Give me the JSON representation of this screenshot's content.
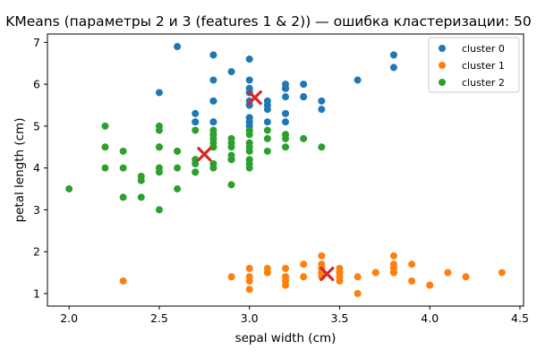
{
  "chart_data": {
    "type": "scatter",
    "title": "KMeans (параметры 2 и 3 (features 1 & 2)) — ошибка кластеризации: 50",
    "xlabel": "sepal width (cm)",
    "ylabel": "petal length (cm)",
    "xlim": [
      1.88,
      4.52
    ],
    "ylim": [
      0.7,
      7.2
    ],
    "xticks": [
      "2.0",
      "2.5",
      "3.0",
      "3.5",
      "4.0",
      "4.5"
    ],
    "xtick_values": [
      2.0,
      2.5,
      3.0,
      3.5,
      4.0,
      4.5
    ],
    "yticks": [
      "1",
      "2",
      "3",
      "4",
      "5",
      "6",
      "7"
    ],
    "ytick_values": [
      1,
      2,
      3,
      4,
      5,
      6,
      7
    ],
    "legend_position": "top-right",
    "series": [
      {
        "name": "cluster 0",
        "color": "#1f77b4",
        "x": [
          2.6,
          2.8,
          2.5,
          3.0,
          3.0,
          3.2,
          3.2,
          3.3,
          3.2,
          3.3,
          3.0,
          3.4,
          3.4,
          3.0,
          3.6,
          3.8,
          3.8,
          2.8,
          2.9,
          2.8,
          3.1,
          3.0,
          3.0,
          3.1,
          3.1,
          2.7,
          2.7,
          2.8,
          2.8,
          3.0,
          3.0,
          3.0,
          3.0,
          3.0,
          3.0,
          3.1,
          3.2,
          3.2,
          3.0,
          2.7,
          2.8,
          3.0,
          3.0,
          3.3,
          3.2
        ],
        "y": [
          6.9,
          6.7,
          5.8,
          6.6,
          6.1,
          6.0,
          5.9,
          6.0,
          5.7,
          5.7,
          5.9,
          5.6,
          5.4,
          5.8,
          6.1,
          6.7,
          6.4,
          6.1,
          6.3,
          5.6,
          5.6,
          5.5,
          5.6,
          5.5,
          5.4,
          5.3,
          5.1,
          5.1,
          5.1,
          5.0,
          5.1,
          5.2,
          5.2,
          5.1,
          4.9,
          5.1,
          5.3,
          5.1,
          5.8,
          5.1,
          5.6,
          5.5,
          5.2,
          5.7,
          5.9
        ]
      },
      {
        "name": "cluster 1",
        "color": "#ff7f0e",
        "x": [
          2.3,
          2.9,
          3.0,
          3.0,
          3.0,
          3.0,
          3.1,
          3.1,
          3.1,
          3.2,
          3.2,
          3.2,
          3.2,
          3.2,
          3.3,
          3.3,
          3.4,
          3.4,
          3.4,
          3.4,
          3.4,
          3.4,
          3.5,
          3.5,
          3.5,
          3.5,
          3.5,
          3.5,
          3.6,
          3.6,
          3.7,
          3.7,
          3.8,
          3.8,
          3.8,
          3.8,
          3.8,
          3.8,
          3.9,
          3.9,
          4.0,
          4.1,
          4.2,
          4.4
        ],
        "y": [
          1.3,
          1.4,
          1.1,
          1.3,
          1.4,
          1.6,
          1.5,
          1.5,
          1.6,
          1.2,
          1.3,
          1.4,
          1.4,
          1.6,
          1.4,
          1.7,
          1.4,
          1.5,
          1.6,
          1.7,
          1.9,
          1.5,
          1.3,
          1.4,
          1.5,
          1.5,
          1.6,
          1.4,
          1.0,
          1.4,
          1.5,
          1.5,
          1.5,
          1.6,
          1.7,
          1.9,
          1.6,
          1.5,
          1.3,
          1.7,
          1.2,
          1.5,
          1.4,
          1.5
        ]
      },
      {
        "name": "cluster 2",
        "color": "#2ca02c",
        "x": [
          2.0,
          2.2,
          2.2,
          2.2,
          2.3,
          2.3,
          2.3,
          2.4,
          2.4,
          2.4,
          2.5,
          2.5,
          2.5,
          2.5,
          2.5,
          2.5,
          2.5,
          2.6,
          2.6,
          2.6,
          2.6,
          2.7,
          2.7,
          2.7,
          2.7,
          2.7,
          2.8,
          2.8,
          2.8,
          2.8,
          2.8,
          2.8,
          2.8,
          2.8,
          2.9,
          2.9,
          2.9,
          2.9,
          2.9,
          2.9,
          3.0,
          3.0,
          3.0,
          3.0,
          3.0,
          3.0,
          3.0,
          3.1,
          3.1,
          3.1,
          3.2,
          3.2,
          3.2,
          3.3,
          3.4,
          2.8,
          2.7,
          2.5,
          3.0,
          2.9
        ],
        "y": [
          3.5,
          5.0,
          4.5,
          4.0,
          3.3,
          4.0,
          4.4,
          3.3,
          3.7,
          3.8,
          3.0,
          3.9,
          4.0,
          4.5,
          4.9,
          5.0,
          4.0,
          3.5,
          4.0,
          4.4,
          4.4,
          3.9,
          4.1,
          4.2,
          4.9,
          3.9,
          4.0,
          4.1,
          4.5,
          4.7,
          4.8,
          4.9,
          4.6,
          4.8,
          3.6,
          4.2,
          4.3,
          4.5,
          4.6,
          4.7,
          4.1,
          4.2,
          4.4,
          4.5,
          4.6,
          4.8,
          4.9,
          4.4,
          4.7,
          4.9,
          4.5,
          4.7,
          4.8,
          4.7,
          4.5,
          4.5,
          4.2,
          4.5,
          4.0,
          4.2
        ]
      }
    ],
    "centroids": {
      "color": "#d62728",
      "x": [
        3.03,
        3.43,
        2.75
      ],
      "y": [
        5.68,
        1.47,
        4.33
      ]
    }
  }
}
